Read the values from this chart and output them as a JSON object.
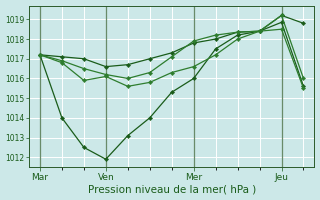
{
  "bg_color": "#cce8e8",
  "grid_color": "#ffffff",
  "line_color_dark": "#1a5c1a",
  "line_color_mid": "#2e7d2e",
  "xlabel": "Pression niveau de la mer( hPa )",
  "xlabel_fontsize": 7.5,
  "ylim": [
    1011.5,
    1019.7
  ],
  "yticks": [
    1012,
    1013,
    1014,
    1015,
    1016,
    1017,
    1018,
    1019
  ],
  "xtick_labels": [
    "Mar",
    "Ven",
    "Mer",
    "Jeu"
  ],
  "xtick_positions": [
    0,
    3,
    7,
    11
  ],
  "vline_positions": [
    0,
    3,
    7,
    11
  ],
  "series": [
    {
      "x": [
        0,
        1,
        2,
        3,
        4,
        5,
        6,
        7,
        8,
        9,
        10,
        11,
        12
      ],
      "y": [
        1017.2,
        1017.1,
        1017.0,
        1016.6,
        1016.7,
        1017.0,
        1017.3,
        1017.8,
        1018.0,
        1018.35,
        1018.4,
        1018.85,
        1015.6
      ]
    },
    {
      "x": [
        0,
        1,
        2,
        3,
        4,
        5,
        6,
        7,
        8,
        9,
        10,
        11,
        12
      ],
      "y": [
        1017.2,
        1014.0,
        1012.5,
        1011.9,
        1013.1,
        1014.0,
        1015.3,
        1016.0,
        1017.5,
        1018.2,
        1018.4,
        1019.2,
        1018.8
      ]
    },
    {
      "x": [
        0,
        1,
        2,
        3,
        4,
        5,
        6,
        7,
        8,
        9,
        10,
        11,
        12
      ],
      "y": [
        1017.2,
        1016.9,
        1016.5,
        1016.2,
        1016.0,
        1016.3,
        1017.1,
        1017.9,
        1018.2,
        1018.35,
        1018.4,
        1019.2,
        1016.0
      ]
    },
    {
      "x": [
        0,
        1,
        2,
        3,
        4,
        5,
        6,
        7,
        8,
        9,
        10,
        11,
        12
      ],
      "y": [
        1017.2,
        1016.8,
        1015.9,
        1016.1,
        1015.6,
        1015.8,
        1016.3,
        1016.6,
        1017.2,
        1018.0,
        1018.4,
        1018.5,
        1015.5
      ]
    }
  ]
}
